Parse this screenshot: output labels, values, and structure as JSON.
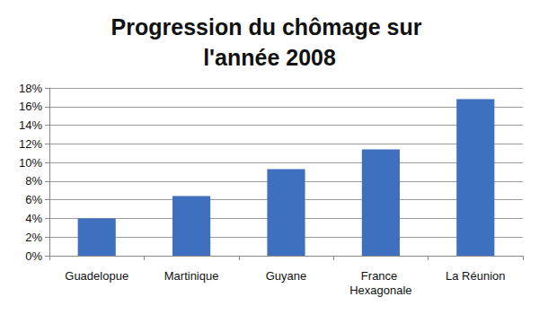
{
  "chart_data": {
    "type": "bar",
    "title": "Progression du chômage sur l'année 2008",
    "categories": [
      "Guadelopue",
      "Martinique",
      "Guyane",
      "France Hexagonale",
      "La Réunion"
    ],
    "values": [
      4.0,
      6.4,
      9.3,
      11.4,
      16.8
    ],
    "color": "#3f6fbf",
    "ylim": [
      0,
      18
    ],
    "yticks": [
      {
        "value": 0,
        "label": "0%"
      },
      {
        "value": 2,
        "label": "2%"
      },
      {
        "value": 4,
        "label": "4%"
      },
      {
        "value": 6,
        "label": "6%"
      },
      {
        "value": 8,
        "label": "8%"
      },
      {
        "value": 10,
        "label": "10%"
      },
      {
        "value": 12,
        "label": "12%"
      },
      {
        "value": 14,
        "label": "14%"
      },
      {
        "value": 16,
        "label": "16%"
      },
      {
        "value": 18,
        "label": "18%"
      }
    ],
    "grid": true
  }
}
